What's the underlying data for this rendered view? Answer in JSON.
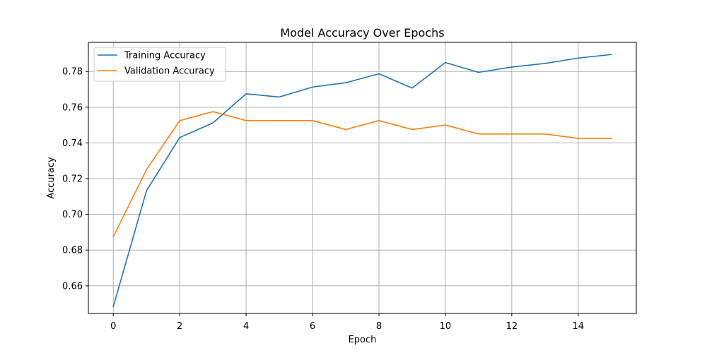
{
  "chart_data": {
    "type": "line",
    "title": "Model Accuracy Over Epochs",
    "xlabel": "Epoch",
    "ylabel": "Accuracy",
    "x": [
      0,
      1,
      2,
      3,
      4,
      5,
      6,
      7,
      8,
      9,
      10,
      11,
      12,
      13,
      14,
      15
    ],
    "xlim": [
      -0.75,
      15.75
    ],
    "ylim": [
      0.6445,
      0.7963
    ],
    "xticks": [
      0,
      2,
      4,
      6,
      8,
      10,
      12,
      14
    ],
    "xtick_labels": [
      "0",
      "2",
      "4",
      "6",
      "8",
      "10",
      "12",
      "14"
    ],
    "yticks": [
      0.66,
      0.68,
      0.7,
      0.72,
      0.74,
      0.76,
      0.78
    ],
    "ytick_labels": [
      "0.66",
      "0.68",
      "0.70",
      "0.72",
      "0.74",
      "0.76",
      "0.78"
    ],
    "grid": true,
    "legend_position": "top-left",
    "series": [
      {
        "name": "Training Accuracy",
        "color": "#1f77b4",
        "values": [
          0.6483,
          0.7132,
          0.743,
          0.7512,
          0.7675,
          0.7657,
          0.7713,
          0.7737,
          0.7787,
          0.7707,
          0.785,
          0.7795,
          0.7825,
          0.7845,
          0.7875,
          0.7895
        ]
      },
      {
        "name": "Validation Accuracy",
        "color": "#ff7f0e",
        "values": [
          0.6875,
          0.725,
          0.7525,
          0.7575,
          0.7525,
          0.7525,
          0.7525,
          0.7475,
          0.7525,
          0.7475,
          0.75,
          0.745,
          0.745,
          0.745,
          0.7425,
          0.7425
        ]
      }
    ]
  }
}
